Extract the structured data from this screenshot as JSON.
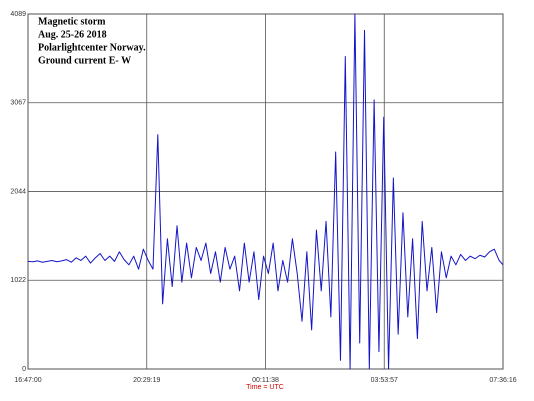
{
  "chart_data": {
    "type": "line",
    "title_lines": [
      "Magnetic storm",
      "Aug. 25-26 2018",
      "Polarlightcenter Norway.",
      "Ground current E- W"
    ],
    "x_label": "Time = UTC",
    "xlim": [
      "16:47:00",
      "07:36:16"
    ],
    "xticks": [
      "16:47:00",
      "20:29:19",
      "00:11:38",
      "03:53:57",
      "07:36:16"
    ],
    "ylim": [
      0,
      4089
    ],
    "yticks": [
      0,
      1022,
      2044,
      3067,
      4089
    ],
    "grid": true,
    "series": [
      {
        "color": "#1515c8",
        "x": [
          "16:47:00",
          "16:56:00",
          "17:05:00",
          "17:14:00",
          "17:23:00",
          "17:32:00",
          "17:41:00",
          "17:50:00",
          "17:59:00",
          "18:08:00",
          "18:17:00",
          "18:26:00",
          "18:35:00",
          "18:44:00",
          "18:53:00",
          "19:02:00",
          "19:11:00",
          "19:20:00",
          "19:29:00",
          "19:38:00",
          "19:47:00",
          "19:56:00",
          "20:05:00",
          "20:14:00",
          "20:23:00",
          "20:32:00",
          "20:41:00",
          "20:50:00",
          "20:59:00",
          "21:08:00",
          "21:17:00",
          "21:26:00",
          "21:35:00",
          "21:44:00",
          "21:53:00",
          "22:02:00",
          "22:11:00",
          "22:20:00",
          "22:29:00",
          "22:38:00",
          "22:47:00",
          "22:56:00",
          "23:05:00",
          "23:14:00",
          "23:23:00",
          "23:32:00",
          "23:41:00",
          "23:50:00",
          "23:59:00",
          "00:08:00",
          "00:17:00",
          "00:26:00",
          "00:35:00",
          "00:44:00",
          "00:53:00",
          "01:02:00",
          "01:11:00",
          "01:20:00",
          "01:29:00",
          "01:38:00",
          "01:47:00",
          "01:56:00",
          "02:05:00",
          "02:14:00",
          "02:23:00",
          "02:32:00",
          "02:41:00",
          "02:50:00",
          "02:59:00",
          "03:08:00",
          "03:17:00",
          "03:26:00",
          "03:35:00",
          "03:44:00",
          "03:53:00",
          "04:02:00",
          "04:11:00",
          "04:20:00",
          "04:29:00",
          "04:38:00",
          "04:47:00",
          "04:56:00",
          "05:05:00",
          "05:14:00",
          "05:23:00",
          "05:32:00",
          "05:41:00",
          "05:50:00",
          "05:59:00",
          "06:08:00",
          "06:17:00",
          "06:26:00",
          "06:35:00",
          "06:44:00",
          "06:53:00",
          "07:02:00",
          "07:11:00",
          "07:20:00",
          "07:29:00",
          "07:36:16"
        ],
        "values": [
          1240,
          1235,
          1245,
          1230,
          1240,
          1250,
          1235,
          1245,
          1260,
          1230,
          1280,
          1250,
          1300,
          1220,
          1280,
          1330,
          1250,
          1300,
          1240,
          1350,
          1260,
          1200,
          1300,
          1150,
          1380,
          1250,
          1150,
          2700,
          750,
          1500,
          950,
          1650,
          1000,
          1450,
          1050,
          1400,
          1250,
          1450,
          1100,
          1350,
          1000,
          1400,
          1150,
          1300,
          900,
          1450,
          1000,
          1350,
          800,
          1300,
          1100,
          1450,
          900,
          1250,
          1000,
          1500,
          1100,
          550,
          1350,
          450,
          1600,
          900,
          1700,
          600,
          2500,
          100,
          3600,
          0,
          4089,
          300,
          3900,
          0,
          3100,
          200,
          2900,
          0,
          2200,
          400,
          1800,
          600,
          1500,
          350,
          1700,
          900,
          1400,
          650,
          1350,
          1050,
          1300,
          1200,
          1320,
          1250,
          1300,
          1270,
          1310,
          1290,
          1350,
          1380,
          1250,
          1200
        ]
      }
    ]
  }
}
